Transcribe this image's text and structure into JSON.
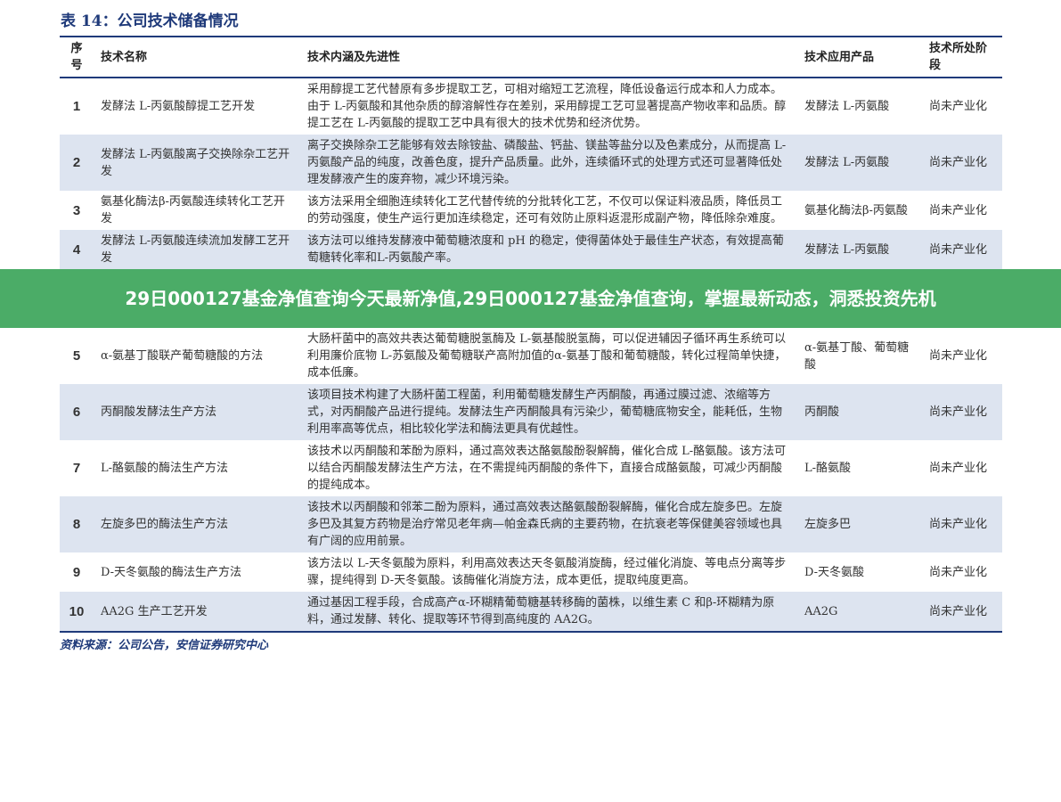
{
  "title": "表 14：公司技术储备情况",
  "headers": [
    "序号",
    "技术名称",
    "技术内涵及先进性",
    "技术应用产品",
    "技术所处阶段"
  ],
  "rows": [
    {
      "n": "1",
      "name": "发酵法 L-丙氨酸醇提工艺开发",
      "desc": "采用醇提工艺代替原有多步提取工艺，可相对缩短工艺流程，降低设备运行成本和人力成本。由于 L-丙氨酸和其他杂质的醇溶解性存在差别，采用醇提工艺可显著提高产物收率和品质。醇提工艺在 L-丙氨酸的提取工艺中具有很大的技术优势和经济优势。",
      "product": "发酵法 L-丙氨酸",
      "stage": "尚未产业化"
    },
    {
      "n": "2",
      "name": "发酵法 L-丙氨酸离子交换除杂工艺开发",
      "desc": "离子交换除杂工艺能够有效去除铵盐、磷酸盐、钙盐、镁盐等盐分以及色素成分，从而提高 L-丙氨酸产品的纯度，改善色度，提升产品质量。此外，连续循环式的处理方式还可显著降低处理发酵液产生的废弃物，减少环境污染。",
      "product": "发酵法 L-丙氨酸",
      "stage": "尚未产业化"
    },
    {
      "n": "3",
      "name": "氨基化酶法β-丙氨酸连续转化工艺开发",
      "desc": "该方法采用全细胞连续转化工艺代替传统的分批转化工艺，不仅可以保证料液品质，降低员工的劳动强度，使生产运行更加连续稳定，还可有效防止原料返混形成副产物，降低除杂难度。",
      "product": "氨基化酶法β-丙氨酸",
      "stage": "尚未产业化"
    },
    {
      "n": "4",
      "name": "发酵法 L-丙氨酸连续流加发酵工艺开发",
      "desc": "该方法可以维持发酵液中葡萄糖浓度和 pH 的稳定，使得菌体处于最佳生产状态，有效提高葡萄糖转化率和L-丙氨酸产率。",
      "product": "发酵法 L-丙氨酸",
      "stage": "尚未产业化"
    },
    {
      "n": "5",
      "name": "α-氨基丁酸联产葡萄糖酸的方法",
      "desc": "大肠杆菌中的高效共表达葡萄糖脱氢酶及 L-氨基酸脱氢酶，可以促进辅因子循环再生系统可以利用廉价底物 L-苏氨酸及葡萄糖联产高附加值的α-氨基丁酸和葡萄糖酸，转化过程简单快捷，成本低廉。",
      "product": "α-氨基丁酸、葡萄糖酸",
      "stage": "尚未产业化"
    },
    {
      "n": "6",
      "name": "丙酮酸发酵法生产方法",
      "desc": "该项目技术构建了大肠杆菌工程菌，利用葡萄糖发酵生产丙酮酸，再通过膜过滤、浓缩等方式，对丙酮酸产品进行提纯。发酵法生产丙酮酸具有污染少，葡萄糖底物安全，能耗低，生物利用率高等优点，相比较化学法和酶法更具有优越性。",
      "product": "丙酮酸",
      "stage": "尚未产业化"
    },
    {
      "n": "7",
      "name": "L-酪氨酸的酶法生产方法",
      "desc": "该技术以丙酮酸和苯酚为原料，通过高效表达酪氨酸酚裂解酶，催化合成 L-酪氨酸。该方法可以结合丙酮酸发酵法生产方法，在不需提纯丙酮酸的条件下，直接合成酪氨酸，可减少丙酮酸的提纯成本。",
      "product": "L-酪氨酸",
      "stage": "尚未产业化"
    },
    {
      "n": "8",
      "name": "左旋多巴的酶法生产方法",
      "desc": "该技术以丙酮酸和邻苯二酚为原料，通过高效表达酪氨酸酚裂解酶，催化合成左旋多巴。左旋多巴及其复方药物是治疗常见老年病—帕金森氏病的主要药物，在抗衰老等保健美容领域也具有广阔的应用前景。",
      "product": "左旋多巴",
      "stage": "尚未产业化"
    },
    {
      "n": "9",
      "name": "D-天冬氨酸的酶法生产方法",
      "desc": "该方法以 L-天冬氨酸为原料，利用高效表达天冬氨酸消旋酶，经过催化消旋、等电点分离等步骤，提纯得到 D-天冬氨酸。该酶催化消旋方法，成本更低，提取纯度更高。",
      "product": "D-天冬氨酸",
      "stage": "尚未产业化"
    },
    {
      "n": "10",
      "name": "AA2G 生产工艺开发",
      "desc": "通过基因工程手段，合成高产α-环糊精葡萄糖基转移酶的菌株，以维生素 C 和β-环糊精为原料，通过发酵、转化、提取等环节得到高纯度的 AA2G。",
      "product": "AA2G",
      "stage": "尚未产业化"
    }
  ],
  "source": "资料来源：公司公告，安信证券研究中心",
  "banner": "29日000127基金净值查询今天最新净值,29日000127基金净值查询，掌握最新动态，洞悉投资先机"
}
